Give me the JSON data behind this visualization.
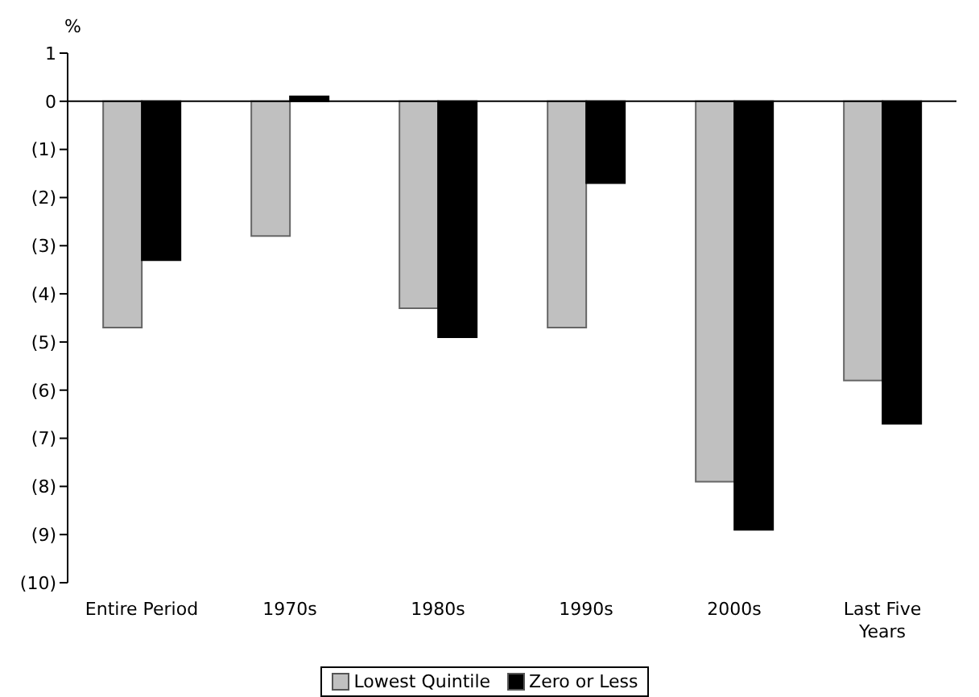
{
  "chart_data": {
    "type": "bar",
    "ylabel": "%",
    "categories": [
      "Entire Period",
      "1970s",
      "1980s",
      "1990s",
      "2000s",
      "Last Five Years"
    ],
    "series": [
      {
        "name": "Lowest Quintile",
        "color": "#c0c0c0",
        "values": [
          -4.7,
          -2.8,
          -4.3,
          -4.7,
          -7.9,
          -5.8
        ]
      },
      {
        "name": "Zero or Less",
        "color": "#000000",
        "values": [
          -3.3,
          0.1,
          -4.9,
          -1.7,
          -8.9,
          -6.7
        ]
      }
    ],
    "ylim": [
      -10,
      1
    ],
    "yticks": [
      1,
      0,
      {
        "value": -1,
        "label": "(1)"
      },
      {
        "value": -2,
        "label": "(2)"
      },
      {
        "value": -3,
        "label": "(3)"
      },
      {
        "value": -4,
        "label": "(4)"
      },
      {
        "value": -5,
        "label": "(5)"
      },
      {
        "value": -6,
        "label": "(6)"
      },
      {
        "value": -7,
        "label": "(7)"
      },
      {
        "value": -8,
        "label": "(8)"
      },
      {
        "value": -9,
        "label": "(9)"
      },
      {
        "value": -10,
        "label": "(10)"
      }
    ],
    "ref_lines": [
      {
        "axis": "y",
        "value": 0,
        "color": "#000000"
      }
    ],
    "legend": "bottom"
  }
}
